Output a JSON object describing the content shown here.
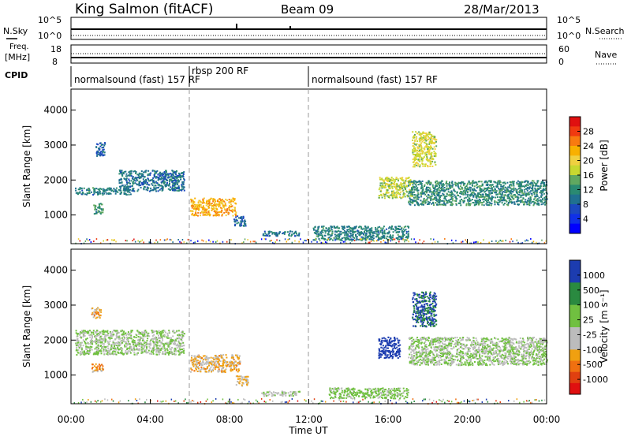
{
  "header": {
    "station": "King Salmon (fitACF)",
    "beam": "Beam 09",
    "date": "28/Mar/2013"
  },
  "aux_panels": {
    "nsky_label": "N.Sky",
    "nsky_ticks": [
      "10^5",
      "10^0"
    ],
    "nsearch_label": "N.Search",
    "nsearch_ticks": [
      "10^5",
      "10^0"
    ],
    "freq_label_1": "Freq.",
    "freq_label_2": "[MHz]",
    "freq_ticks": [
      "18",
      "8"
    ],
    "nave_label": "Nave",
    "nave_ticks": [
      "60",
      "0"
    ],
    "cpid_label": "CPID",
    "cpid_segments": [
      {
        "label": "normalsound (fast) 157 RF",
        "start": 0,
        "end": 6
      },
      {
        "label": "rbsp 200 RF",
        "start": 6,
        "end": 12
      },
      {
        "label": "normalsound (fast) 157 RF",
        "start": 12,
        "end": 24
      }
    ]
  },
  "power_colorbar": {
    "label": "Power [dB]",
    "ticks": [
      "28",
      "24",
      "20",
      "16",
      "12",
      "8",
      "4"
    ],
    "colors": [
      "#e01010",
      "#f03a10",
      "#f87a10",
      "#f8b000",
      "#f0d040",
      "#c8d830",
      "#60a860",
      "#2a8a72",
      "#207090",
      "#1c48c0",
      "#1030e8",
      "#0000ff"
    ]
  },
  "velocity_colorbar": {
    "label": "Velocity [m s⁻¹]",
    "ticks": [
      "1000",
      "500",
      "100",
      "25",
      "-25",
      "-100",
      "-500",
      "-1000"
    ],
    "colors": [
      "#1c3cb0",
      "#1c3cb0",
      "#2a8a40",
      "#2a8a40",
      "#70c040",
      "#70c040",
      "#bcbcbc",
      "#bcbcbc",
      "#f0a010",
      "#f07010",
      "#e04010",
      "#e01010"
    ]
  },
  "chart_data": [
    {
      "type": "heatmap",
      "title": "",
      "xlabel": "Time UT",
      "ylabel": "Slant Range [km]",
      "x_ticks": [
        "00:00",
        "04:00",
        "08:00",
        "12:00",
        "16:00",
        "20:00",
        "00:00"
      ],
      "y_ticks": [
        "4000",
        "3000",
        "2000",
        "1000"
      ],
      "xlim": [
        0,
        24
      ],
      "ylim": [
        180,
        4600
      ],
      "colorbar": "Power [dB]",
      "clim": [
        0,
        30
      ],
      "regions": [
        {
          "t0": 0.2,
          "t1": 3.0,
          "r0": 1600,
          "r1": 1800,
          "value": 10
        },
        {
          "t0": 2.4,
          "t1": 5.7,
          "r0": 1700,
          "r1": 2300,
          "value": 9
        },
        {
          "t0": 1.2,
          "t1": 1.7,
          "r0": 2700,
          "r1": 3100,
          "value": 8
        },
        {
          "t0": 1.1,
          "t1": 1.6,
          "r0": 1050,
          "r1": 1350,
          "value": 12
        },
        {
          "t0": 6.0,
          "t1": 8.3,
          "r0": 1000,
          "r1": 1500,
          "value": 21
        },
        {
          "t0": 8.2,
          "t1": 8.8,
          "r0": 700,
          "r1": 1000,
          "value": 8
        },
        {
          "t0": 9.6,
          "t1": 11.5,
          "r0": 420,
          "r1": 560,
          "value": 9
        },
        {
          "t0": 12.2,
          "t1": 17.0,
          "r0": 300,
          "r1": 700,
          "value": 10
        },
        {
          "t0": 15.5,
          "t1": 17.2,
          "r0": 1500,
          "r1": 2100,
          "value": 16
        },
        {
          "t0": 17.2,
          "t1": 18.4,
          "r0": 2400,
          "r1": 3400,
          "value": 17
        },
        {
          "t0": 17.0,
          "t1": 24.0,
          "r0": 1300,
          "r1": 2000,
          "value": 11
        }
      ]
    },
    {
      "type": "heatmap",
      "title": "",
      "xlabel": "Time UT",
      "ylabel": "Slant Range [km]",
      "x_ticks": [
        "00:00",
        "04:00",
        "08:00",
        "12:00",
        "16:00",
        "20:00",
        "00:00"
      ],
      "y_ticks": [
        "4000",
        "3000",
        "2000",
        "1000"
      ],
      "xlim": [
        0,
        24
      ],
      "ylim": [
        180,
        4600
      ],
      "colorbar": "Velocity [m s⁻¹]",
      "clim": [
        -1000,
        1000
      ],
      "regions": [
        {
          "t0": 0.2,
          "t1": 5.7,
          "r0": 1600,
          "r1": 2300,
          "value": 0
        },
        {
          "t0": 1.0,
          "t1": 1.5,
          "r0": 2650,
          "r1": 2950,
          "value": -400
        },
        {
          "t0": 1.0,
          "t1": 1.6,
          "r0": 1100,
          "r1": 1350,
          "value": -450
        },
        {
          "t0": 6.0,
          "t1": 8.5,
          "r0": 1100,
          "r1": 1600,
          "value": -350
        },
        {
          "t0": 8.3,
          "t1": 8.9,
          "r0": 700,
          "r1": 1000,
          "value": -300
        },
        {
          "t0": 9.6,
          "t1": 11.5,
          "r0": 420,
          "r1": 560,
          "value": -50
        },
        {
          "t0": 13.0,
          "t1": 17.0,
          "r0": 350,
          "r1": 650,
          "value": 80
        },
        {
          "t0": 15.5,
          "t1": 16.6,
          "r0": 1500,
          "r1": 2100,
          "value": 900
        },
        {
          "t0": 17.2,
          "t1": 18.4,
          "r0": 2400,
          "r1": 3400,
          "value": 700
        },
        {
          "t0": 17.0,
          "t1": 24.0,
          "r0": 1300,
          "r1": 2100,
          "value": 0
        }
      ]
    }
  ]
}
